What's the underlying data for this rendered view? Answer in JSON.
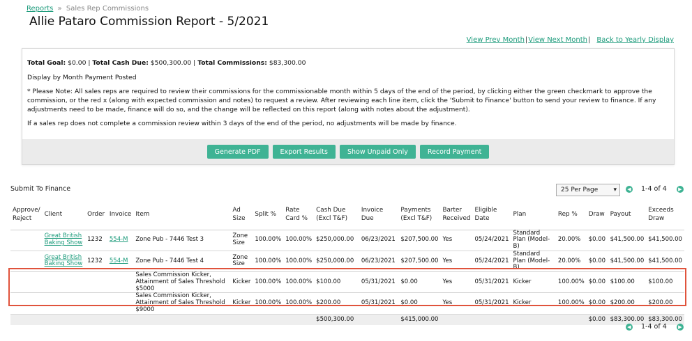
{
  "breadcrumb": {
    "link": "Reports",
    "separator": "»",
    "current": "Sales Rep Commissions"
  },
  "title": "Allie Pataro Commission Report - 5/2021",
  "nav_links": {
    "prev": "View Prev Month",
    "next": "View Next Month",
    "yearly": "Back to Yearly Display",
    "bar": "|"
  },
  "info": {
    "goal_label": "Total Goal:",
    "goal_value": "$0.00",
    "cash_label": "Total Cash Due:",
    "cash_value": "$500,300.00",
    "comm_label": "Total Commissions:",
    "comm_value": "$83,300.00",
    "pipe": " | ",
    "display_mode": "Display by Month Payment Posted",
    "note": "* Please Note: All sales reps are required to review their commissions for the commissionable month within 5 days of the end of the period, by clicking either the green checkmark to approve the commission, or the red x (along with expected commission and notes) to request a review. After reviewing each line item, click the 'Submit to Finance' button to send your review to finance. If any adjustments need to be made, finance will do so, and the change will be reflected on this report (along with notes about the adjustment).",
    "warning": "If a sales rep does not complete a commission review within 3 days of the end of the period, no adjustments will be made by finance."
  },
  "buttons": {
    "pdf": "Generate PDF",
    "export": "Export Results",
    "unpaid": "Show Unpaid Only",
    "record": "Record Payment"
  },
  "submit_label": "Submit To Finance",
  "per_page": "25 Per Page",
  "pagination": "1-4 of 4",
  "columns": {
    "approve": "Approve/ Reject",
    "client": "Client",
    "order": "Order",
    "invoice": "Invoice",
    "item": "Item",
    "ad_size": "Ad Size",
    "split": "Split %",
    "rate_card": "Rate Card %",
    "cash_due": "Cash Due (Excl T&F)",
    "invoice_due": "Invoice Due",
    "payments": "Payments (Excl T&F)",
    "barter": "Barter Received",
    "eligible": "Eligible Date",
    "plan": "Plan",
    "rep": "Rep %",
    "draw": "Draw",
    "payout": "Payout",
    "exceeds": "Exceeds Draw"
  },
  "rows": [
    {
      "client": "Great British Baking Show",
      "order": "1232",
      "invoice": "554-M",
      "item": "Zone Pub - 7446 Test 3",
      "ad_size": "Zone Size",
      "split": "100.00%",
      "rate_card": "100.00%",
      "cash_due": "$250,000.00",
      "invoice_due": "06/23/2021",
      "payments": "$207,500.00",
      "barter": "Yes",
      "eligible": "05/24/2021",
      "plan": "Standard Plan (Model-B)",
      "rep": "20.00%",
      "draw": "$0.00",
      "payout": "$41,500.00",
      "exceeds": "$41,500.00"
    },
    {
      "client": "Great British Baking Show",
      "order": "1232",
      "invoice": "554-M",
      "item": "Zone Pub - 7446 Test 4",
      "ad_size": "Zone Size",
      "split": "100.00%",
      "rate_card": "100.00%",
      "cash_due": "$250,000.00",
      "invoice_due": "06/23/2021",
      "payments": "$207,500.00",
      "barter": "Yes",
      "eligible": "05/24/2021",
      "plan": "Standard Plan (Model-B)",
      "rep": "20.00%",
      "draw": "$0.00",
      "payout": "$41,500.00",
      "exceeds": "$41,500.00"
    },
    {
      "client": "",
      "order": "",
      "invoice": "",
      "item": "Sales Commission Kicker, Attainment of Sales Threshold $5000",
      "ad_size": "Kicker",
      "split": "100.00%",
      "rate_card": "100.00%",
      "cash_due": "$100.00",
      "invoice_due": "05/31/2021",
      "payments": "$0.00",
      "barter": "Yes",
      "eligible": "05/31/2021",
      "plan": "Kicker",
      "rep": "100.00%",
      "draw": "$0.00",
      "payout": "$100.00",
      "exceeds": "$100.00"
    },
    {
      "client": "",
      "order": "",
      "invoice": "",
      "item": "Sales Commission Kicker, Attainment of Sales Threshold $9000",
      "ad_size": "Kicker",
      "split": "100.00%",
      "rate_card": "100.00%",
      "cash_due": "$200.00",
      "invoice_due": "05/31/2021",
      "payments": "$0.00",
      "barter": "Yes",
      "eligible": "05/31/2021",
      "plan": "Kicker",
      "rep": "100.00%",
      "draw": "$0.00",
      "payout": "$200.00",
      "exceeds": "$200.00"
    }
  ],
  "totals": {
    "cash_due": "$500,300.00",
    "payments": "$415,000.00",
    "draw": "$0.00",
    "payout": "$83,300.00",
    "exceeds": "$83,300.00"
  },
  "colors": {
    "accent": "#3fb394",
    "highlight": "#e0533c",
    "link": "#1a9a7a"
  },
  "icons": {
    "prev": "chevron-left-icon",
    "next": "chevron-right-icon",
    "dropdown": "chevron-down-icon"
  }
}
